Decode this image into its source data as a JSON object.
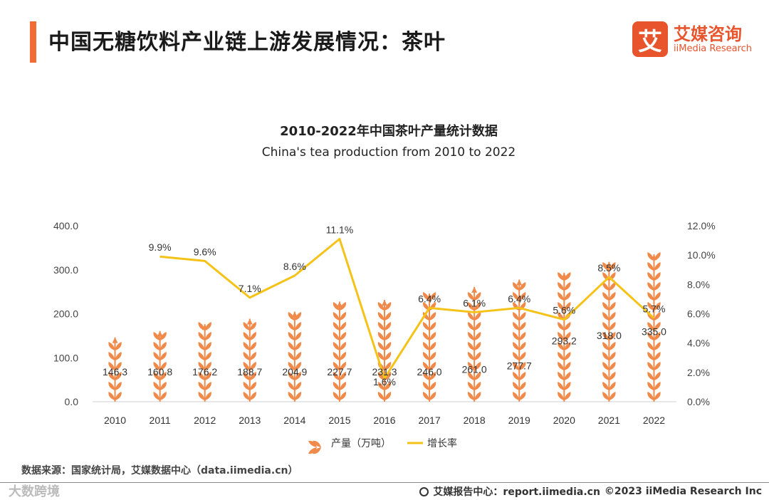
{
  "header": {
    "title": "中国无糖饮料产业链上游发展情况：茶叶",
    "logo_mark": "艾",
    "logo_cn": "艾媒咨询",
    "logo_en": "iiMedia Research"
  },
  "chart_data": {
    "type": "bar",
    "title": "2010-2022年中国茶叶产量统计数据",
    "subtitle": "China's tea production from 2010 to 2022",
    "categories": [
      "2010",
      "2011",
      "2012",
      "2013",
      "2014",
      "2015",
      "2016",
      "2017",
      "2018",
      "2019",
      "2020",
      "2021",
      "2022"
    ],
    "series": [
      {
        "name": "产量（万吨）",
        "type": "bar",
        "axis": "left",
        "values": [
          146.3,
          160.8,
          176.2,
          188.7,
          204.9,
          227.7,
          231.3,
          246.0,
          261.0,
          277.7,
          293.2,
          318.0,
          335.0
        ],
        "labels": [
          "146.3",
          "160.8",
          "176.2",
          "188.7",
          "204.9",
          "227.7",
          "231.3",
          "246.0",
          "261.0",
          "277.7",
          "293.2",
          "318.0",
          "335.0"
        ],
        "color": "#f08a4b"
      },
      {
        "name": "增长率",
        "type": "line",
        "axis": "right",
        "values": [
          null,
          9.9,
          9.6,
          7.1,
          8.6,
          11.1,
          1.6,
          6.4,
          6.1,
          6.4,
          5.6,
          8.5,
          5.7
        ],
        "labels": [
          "",
          "9.9%",
          "9.6%",
          "7.1%",
          "8.6%",
          "11.1%",
          "1.6%",
          "6.4%",
          "6.1%",
          "6.4%",
          "5.6%",
          "8.5%",
          "5.7%"
        ],
        "color": "#f5c218"
      }
    ],
    "y_left": {
      "min": 0,
      "max": 400,
      "ticks": [
        "0.0",
        "100.0",
        "200.0",
        "300.0",
        "400.0"
      ]
    },
    "y_right": {
      "min": 0,
      "max": 12,
      "ticks": [
        "0.0%",
        "2.0%",
        "4.0%",
        "6.0%",
        "8.0%",
        "10.0%",
        "12.0%"
      ]
    },
    "grid": false,
    "legend_position": "bottom"
  },
  "source": "数据来源：国家统计局，艾媒数据中心（data.iimedia.cn）",
  "footer": {
    "watermark": "大数跨境",
    "site": "艾媒报告中心：report.iimedia.cn",
    "copyright": "©2023  iiMedia Research  Inc"
  },
  "colors": {
    "accent": "#f26b35",
    "bar": "#f08a4b",
    "line": "#f5c218"
  }
}
